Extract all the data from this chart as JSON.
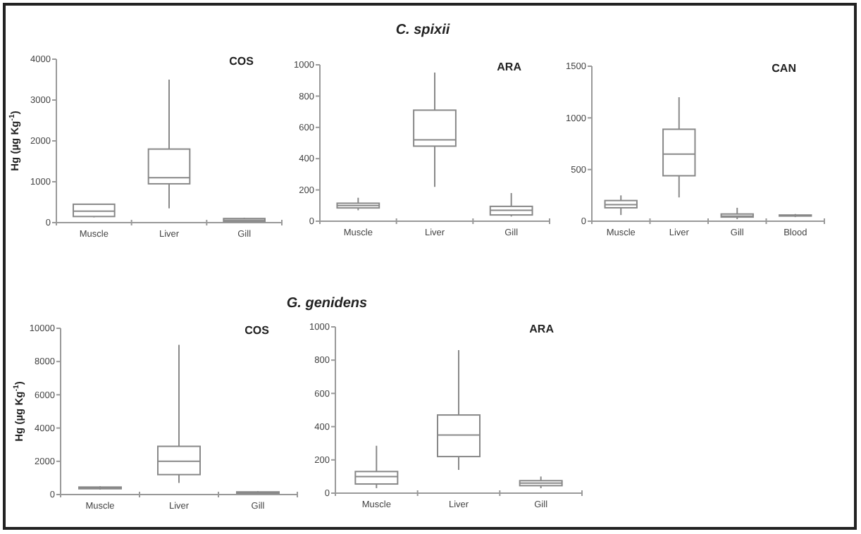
{
  "chart_data": [
    {
      "type": "box",
      "subtitle": "COS",
      "ylabel": "Hg (µg Kg$^{-1}$)",
      "categories": [
        "Muscle",
        "Liver",
        "Gill"
      ],
      "color": "#888888",
      "ylim": [
        0,
        4000
      ],
      "yticks": [
        0,
        1000,
        2000,
        3000,
        4000
      ],
      "boxes": [
        {
          "low": 130,
          "q1": 150,
          "median": 280,
          "q3": 450,
          "high": 450
        },
        {
          "low": 350,
          "q1": 950,
          "median": 1100,
          "q3": 1800,
          "high": 3500
        },
        {
          "low": 20,
          "q1": 30,
          "median": 60,
          "q3": 100,
          "high": 120
        }
      ]
    },
    {
      "type": "box",
      "title": "C. spixii",
      "subtitle": "ARA",
      "categories": [
        "Muscle",
        "Liver",
        "Gill"
      ],
      "color": "#888888",
      "ylim": [
        0,
        1000
      ],
      "yticks": [
        0,
        200,
        400,
        600,
        800,
        1000
      ],
      "boxes": [
        {
          "low": 70,
          "q1": 85,
          "median": 100,
          "q3": 115,
          "high": 150
        },
        {
          "low": 220,
          "q1": 480,
          "median": 520,
          "q3": 710,
          "high": 950
        },
        {
          "low": 30,
          "q1": 40,
          "median": 70,
          "q3": 95,
          "high": 180
        }
      ]
    },
    {
      "type": "box",
      "subtitle": "CAN",
      "categories": [
        "Muscle",
        "Liver",
        "Gill",
        "Blood"
      ],
      "color": "#888888",
      "ylim": [
        0,
        1500
      ],
      "yticks": [
        0,
        500,
        1000,
        1500
      ],
      "boxes": [
        {
          "low": 60,
          "q1": 130,
          "median": 160,
          "q3": 200,
          "high": 250
        },
        {
          "low": 230,
          "q1": 440,
          "median": 650,
          "q3": 890,
          "high": 1200
        },
        {
          "low": 20,
          "q1": 40,
          "median": 50,
          "q3": 70,
          "high": 130
        },
        {
          "low": 40,
          "q1": 50,
          "median": 55,
          "q3": 60,
          "high": 70
        }
      ]
    },
    {
      "type": "box",
      "subtitle": "COS",
      "ylabel": "Hg (µg Kg$^{-1}$)",
      "categories": [
        "Muscle",
        "Liver",
        "Gill"
      ],
      "color": "#888888",
      "ylim": [
        0,
        10000
      ],
      "yticks": [
        0,
        2000,
        4000,
        6000,
        8000,
        10000
      ],
      "boxes": [
        {
          "low": 300,
          "q1": 350,
          "median": 400,
          "q3": 450,
          "high": 500
        },
        {
          "low": 700,
          "q1": 1200,
          "median": 2000,
          "q3": 2900,
          "high": 9000
        },
        {
          "low": 50,
          "q1": 80,
          "median": 120,
          "q3": 160,
          "high": 200
        }
      ]
    },
    {
      "type": "box",
      "title": "G. genidens",
      "subtitle": "ARA",
      "categories": [
        "Muscle",
        "Liver",
        "Gill"
      ],
      "color": "#888888",
      "ylim": [
        0,
        1000
      ],
      "yticks": [
        0,
        200,
        400,
        600,
        800,
        1000
      ],
      "boxes": [
        {
          "low": 30,
          "q1": 55,
          "median": 100,
          "q3": 130,
          "high": 285
        },
        {
          "low": 140,
          "q1": 220,
          "median": 350,
          "q3": 470,
          "high": 860
        },
        {
          "low": 30,
          "q1": 45,
          "median": 60,
          "q3": 75,
          "high": 100
        }
      ]
    }
  ]
}
